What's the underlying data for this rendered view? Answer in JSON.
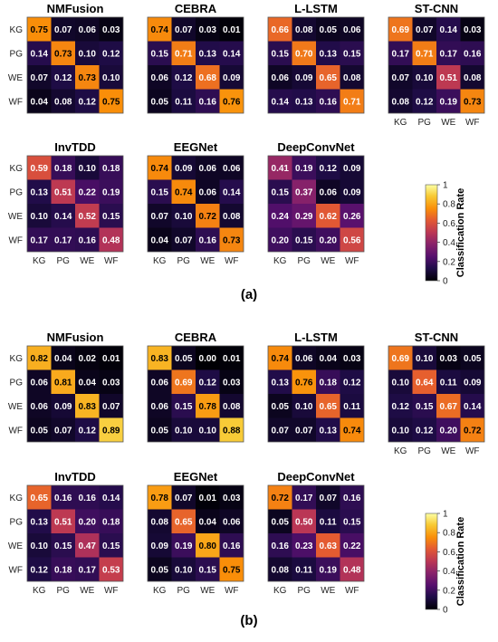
{
  "chart_data": [
    {
      "panel": "(a)",
      "type": "heatmap",
      "colorbar": {
        "title": "Classification Rate",
        "ticks": [
          "0",
          "0.2",
          "0.4",
          "0.6",
          "0.8",
          "1"
        ],
        "range": [
          0,
          1
        ]
      },
      "matrices": [
        {
          "title": "NMFusion",
          "rows": [
            "KG",
            "PG",
            "WE",
            "WF"
          ],
          "cols": [
            "KG",
            "PG",
            "WE",
            "WF"
          ],
          "values": [
            [
              0.75,
              0.07,
              0.06,
              0.03
            ],
            [
              0.14,
              0.73,
              0.1,
              0.12
            ],
            [
              0.07,
              0.12,
              0.73,
              0.1
            ],
            [
              0.04,
              0.08,
              0.12,
              0.75
            ]
          ]
        },
        {
          "title": "CEBRA",
          "rows": [
            "KG",
            "PG",
            "WE",
            "WF"
          ],
          "cols": [
            "KG",
            "PG",
            "WE",
            "WF"
          ],
          "values": [
            [
              0.74,
              0.07,
              0.03,
              0.01
            ],
            [
              0.15,
              0.71,
              0.13,
              0.14
            ],
            [
              0.06,
              0.12,
              0.68,
              0.09
            ],
            [
              0.05,
              0.11,
              0.16,
              0.76
            ]
          ]
        },
        {
          "title": "L-LSTM",
          "rows": [
            "KG",
            "PG",
            "WE",
            "WF"
          ],
          "cols": [
            "KG",
            "PG",
            "WE",
            "WF"
          ],
          "values": [
            [
              0.66,
              0.08,
              0.05,
              0.06
            ],
            [
              0.15,
              0.7,
              0.13,
              0.15
            ],
            [
              0.06,
              0.09,
              0.65,
              0.08
            ],
            [
              0.14,
              0.13,
              0.16,
              0.71
            ]
          ]
        },
        {
          "title": "ST-CNN",
          "rows": [
            "KG",
            "PG",
            "WE",
            "WF"
          ],
          "cols": [
            "KG",
            "PG",
            "WE",
            "WF"
          ],
          "values": [
            [
              0.69,
              0.07,
              0.14,
              0.03
            ],
            [
              0.17,
              0.71,
              0.17,
              0.16
            ],
            [
              0.07,
              0.1,
              0.51,
              0.08
            ],
            [
              0.08,
              0.12,
              0.19,
              0.73
            ]
          ]
        },
        {
          "title": "InvTDD",
          "rows": [
            "KG",
            "PG",
            "WE",
            "WF"
          ],
          "cols": [
            "KG",
            "PG",
            "WE",
            "WF"
          ],
          "values": [
            [
              0.59,
              0.18,
              0.1,
              0.18
            ],
            [
              0.13,
              0.51,
              0.22,
              0.19
            ],
            [
              0.1,
              0.14,
              0.52,
              0.15
            ],
            [
              0.17,
              0.17,
              0.16,
              0.48
            ]
          ]
        },
        {
          "title": "EEGNet",
          "rows": [
            "KG",
            "PG",
            "WE",
            "WF"
          ],
          "cols": [
            "KG",
            "PG",
            "WE",
            "WF"
          ],
          "values": [
            [
              0.74,
              0.09,
              0.06,
              0.06
            ],
            [
              0.15,
              0.74,
              0.06,
              0.14
            ],
            [
              0.07,
              0.1,
              0.72,
              0.08
            ],
            [
              0.04,
              0.07,
              0.16,
              0.73
            ]
          ]
        },
        {
          "title": "DeepConvNet",
          "rows": [
            "KG",
            "PG",
            "WE",
            "WF"
          ],
          "cols": [
            "KG",
            "PG",
            "WE",
            "WF"
          ],
          "values": [
            [
              0.41,
              0.19,
              0.12,
              0.09
            ],
            [
              0.15,
              0.37,
              0.06,
              0.09
            ],
            [
              0.24,
              0.29,
              0.62,
              0.26
            ],
            [
              0.2,
              0.15,
              0.2,
              0.56
            ]
          ]
        }
      ]
    },
    {
      "panel": "(b)",
      "type": "heatmap",
      "colorbar": {
        "title": "Classification Rate",
        "ticks": [
          "0",
          "0.2",
          "0.4",
          "0.6",
          "0.8",
          "1"
        ],
        "range": [
          0,
          1
        ]
      },
      "matrices": [
        {
          "title": "NMFusion",
          "rows": [
            "KG",
            "PG",
            "WE",
            "WF"
          ],
          "cols": [
            "KG",
            "PG",
            "WE",
            "WF"
          ],
          "values": [
            [
              0.82,
              0.04,
              0.02,
              0.01
            ],
            [
              0.06,
              0.81,
              0.04,
              0.03
            ],
            [
              0.06,
              0.09,
              0.83,
              0.07
            ],
            [
              0.05,
              0.07,
              0.12,
              0.89
            ]
          ]
        },
        {
          "title": "CEBRA",
          "rows": [
            "KG",
            "PG",
            "WE",
            "WF"
          ],
          "cols": [
            "KG",
            "PG",
            "WE",
            "WF"
          ],
          "values": [
            [
              0.83,
              0.05,
              0.0,
              0.01
            ],
            [
              0.06,
              0.69,
              0.12,
              0.03
            ],
            [
              0.06,
              0.15,
              0.78,
              0.08
            ],
            [
              0.05,
              0.1,
              0.1,
              0.88
            ]
          ]
        },
        {
          "title": "L-LSTM",
          "rows": [
            "KG",
            "PG",
            "WE",
            "WF"
          ],
          "cols": [
            "KG",
            "PG",
            "WE",
            "WF"
          ],
          "values": [
            [
              0.74,
              0.06,
              0.04,
              0.03
            ],
            [
              0.13,
              0.76,
              0.18,
              0.12
            ],
            [
              0.05,
              0.1,
              0.65,
              0.11
            ],
            [
              0.07,
              0.07,
              0.13,
              0.74
            ]
          ]
        },
        {
          "title": "ST-CNN",
          "rows": [
            "KG",
            "PG",
            "WE",
            "WF"
          ],
          "cols": [
            "KG",
            "PG",
            "WE",
            "WF"
          ],
          "values": [
            [
              0.69,
              0.1,
              0.03,
              0.05
            ],
            [
              0.1,
              0.64,
              0.11,
              0.09
            ],
            [
              0.12,
              0.15,
              0.67,
              0.14
            ],
            [
              0.1,
              0.12,
              0.2,
              0.72
            ]
          ]
        },
        {
          "title": "InvTDD",
          "rows": [
            "KG",
            "PG",
            "WE",
            "WF"
          ],
          "cols": [
            "KG",
            "PG",
            "WE",
            "WF"
          ],
          "values": [
            [
              0.65,
              0.16,
              0.16,
              0.14
            ],
            [
              0.13,
              0.51,
              0.2,
              0.18
            ],
            [
              0.1,
              0.15,
              0.47,
              0.15
            ],
            [
              0.12,
              0.18,
              0.17,
              0.53
            ]
          ]
        },
        {
          "title": "EEGNet",
          "rows": [
            "KG",
            "PG",
            "WE",
            "WF"
          ],
          "cols": [
            "KG",
            "PG",
            "WE",
            "WF"
          ],
          "values": [
            [
              0.78,
              0.07,
              0.01,
              0.03
            ],
            [
              0.08,
              0.65,
              0.04,
              0.06
            ],
            [
              0.09,
              0.19,
              0.8,
              0.16
            ],
            [
              0.05,
              0.1,
              0.15,
              0.75
            ]
          ]
        },
        {
          "title": "DeepConvNet",
          "rows": [
            "KG",
            "PG",
            "WE",
            "WF"
          ],
          "cols": [
            "KG",
            "PG",
            "WE",
            "WF"
          ],
          "values": [
            [
              0.72,
              0.17,
              0.07,
              0.16
            ],
            [
              0.05,
              0.5,
              0.11,
              0.15
            ],
            [
              0.16,
              0.23,
              0.63,
              0.22
            ],
            [
              0.08,
              0.11,
              0.19,
              0.48
            ]
          ]
        }
      ]
    }
  ]
}
